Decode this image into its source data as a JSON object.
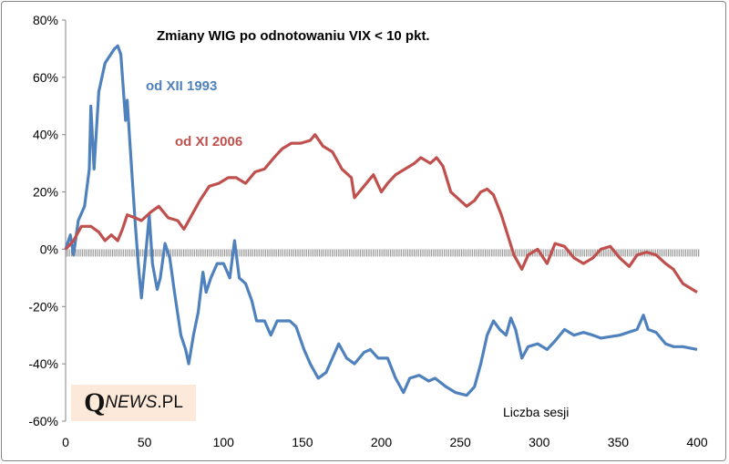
{
  "chart_data": {
    "type": "line",
    "title": "Zmiany WIG po  odnotowaniu VIX < 10 pkt.",
    "xlabel": "Liczba sesji",
    "ylabel": "",
    "xlim": [
      0,
      400
    ],
    "ylim": [
      -60,
      80
    ],
    "xticks": [
      "0",
      "50",
      "100",
      "150",
      "200",
      "250",
      "300",
      "350",
      "400"
    ],
    "yticks": [
      "80%",
      "60%",
      "40%",
      "20%",
      "0%",
      "-20%",
      "-40%",
      "-60%"
    ],
    "grid": false,
    "series": [
      {
        "name": "od XII 1993",
        "color": "#4f81bd",
        "points": [
          [
            0,
            0
          ],
          [
            3,
            5
          ],
          [
            5,
            -2
          ],
          [
            8,
            10
          ],
          [
            12,
            15
          ],
          [
            15,
            28
          ],
          [
            16,
            50
          ],
          [
            18,
            28
          ],
          [
            21,
            55
          ],
          [
            25,
            65
          ],
          [
            31,
            70
          ],
          [
            33,
            71
          ],
          [
            35,
            68
          ],
          [
            38,
            45
          ],
          [
            39,
            52
          ],
          [
            41,
            35
          ],
          [
            44,
            10
          ],
          [
            46,
            -5
          ],
          [
            48,
            -17
          ],
          [
            51,
            0
          ],
          [
            53,
            12
          ],
          [
            55,
            -5
          ],
          [
            58,
            -14
          ],
          [
            60,
            -10
          ],
          [
            63,
            2
          ],
          [
            66,
            -3
          ],
          [
            69,
            -15
          ],
          [
            73,
            -30
          ],
          [
            76,
            -35
          ],
          [
            78,
            -40
          ],
          [
            81,
            -30
          ],
          [
            84,
            -22
          ],
          [
            87,
            -8
          ],
          [
            89,
            -15
          ],
          [
            92,
            -10
          ],
          [
            96,
            -5
          ],
          [
            100,
            -5
          ],
          [
            104,
            -10
          ],
          [
            107,
            3
          ],
          [
            110,
            -10
          ],
          [
            114,
            -12
          ],
          [
            118,
            -18
          ],
          [
            121,
            -25
          ],
          [
            126,
            -25
          ],
          [
            130,
            -30
          ],
          [
            134,
            -25
          ],
          [
            142,
            -25
          ],
          [
            146,
            -27
          ],
          [
            151,
            -35
          ],
          [
            155,
            -40
          ],
          [
            160,
            -45
          ],
          [
            165,
            -43
          ],
          [
            169,
            -38
          ],
          [
            173,
            -33
          ],
          [
            178,
            -38
          ],
          [
            183,
            -40
          ],
          [
            189,
            -36
          ],
          [
            193,
            -35
          ],
          [
            198,
            -38
          ],
          [
            204,
            -38
          ],
          [
            209,
            -45
          ],
          [
            214,
            -50
          ],
          [
            218,
            -45
          ],
          [
            224,
            -44
          ],
          [
            230,
            -46
          ],
          [
            234,
            -45
          ],
          [
            241,
            -48
          ],
          [
            247,
            -50
          ],
          [
            254,
            -51
          ],
          [
            259,
            -48
          ],
          [
            263,
            -40
          ],
          [
            267,
            -30
          ],
          [
            271,
            -25
          ],
          [
            275,
            -28
          ],
          [
            279,
            -30
          ],
          [
            282,
            -24
          ],
          [
            285,
            -28
          ],
          [
            289,
            -38
          ],
          [
            293,
            -34
          ],
          [
            299,
            -33
          ],
          [
            305,
            -35
          ],
          [
            310,
            -32
          ],
          [
            316,
            -28
          ],
          [
            322,
            -30
          ],
          [
            328,
            -29
          ],
          [
            334,
            -30
          ],
          [
            339,
            -31
          ],
          [
            351,
            -30
          ],
          [
            362,
            -28
          ],
          [
            366,
            -23
          ],
          [
            369,
            -28
          ],
          [
            374,
            -29
          ],
          [
            380,
            -33
          ],
          [
            385,
            -34
          ],
          [
            391,
            -34
          ],
          [
            400,
            -35
          ]
        ]
      },
      {
        "name": "od XI 2006",
        "color": "#c0504d",
        "points": [
          [
            0,
            0
          ],
          [
            5,
            3
          ],
          [
            10,
            8
          ],
          [
            16,
            8
          ],
          [
            21,
            6
          ],
          [
            25,
            3
          ],
          [
            29,
            5
          ],
          [
            33,
            3
          ],
          [
            36,
            7
          ],
          [
            39,
            12
          ],
          [
            44,
            11
          ],
          [
            48,
            10
          ],
          [
            54,
            13
          ],
          [
            59,
            15
          ],
          [
            65,
            11
          ],
          [
            71,
            10
          ],
          [
            75,
            7
          ],
          [
            80,
            12
          ],
          [
            85,
            17
          ],
          [
            91,
            22
          ],
          [
            97,
            23
          ],
          [
            103,
            25
          ],
          [
            108,
            25
          ],
          [
            114,
            23
          ],
          [
            120,
            27
          ],
          [
            126,
            28
          ],
          [
            132,
            32
          ],
          [
            137,
            35
          ],
          [
            143,
            37
          ],
          [
            149,
            37
          ],
          [
            155,
            38
          ],
          [
            158,
            40
          ],
          [
            163,
            36
          ],
          [
            169,
            34
          ],
          [
            175,
            28
          ],
          [
            181,
            25
          ],
          [
            183,
            18
          ],
          [
            189,
            22
          ],
          [
            195,
            26
          ],
          [
            200,
            20
          ],
          [
            204,
            23
          ],
          [
            209,
            26
          ],
          [
            215,
            28
          ],
          [
            221,
            30
          ],
          [
            225,
            32
          ],
          [
            231,
            30
          ],
          [
            235,
            32
          ],
          [
            239,
            29
          ],
          [
            244,
            20
          ],
          [
            250,
            17
          ],
          [
            254,
            15
          ],
          [
            259,
            17
          ],
          [
            263,
            20
          ],
          [
            267,
            21
          ],
          [
            271,
            19
          ],
          [
            276,
            12
          ],
          [
            280,
            5
          ],
          [
            284,
            -2
          ],
          [
            289,
            -7
          ],
          [
            293,
            -2
          ],
          [
            299,
            0
          ],
          [
            305,
            -5
          ],
          [
            310,
            2
          ],
          [
            316,
            1
          ],
          [
            322,
            -3
          ],
          [
            328,
            -5
          ],
          [
            334,
            -3
          ],
          [
            339,
            0
          ],
          [
            345,
            1
          ],
          [
            351,
            -3
          ],
          [
            357,
            -6
          ],
          [
            362,
            -2
          ],
          [
            368,
            -1
          ],
          [
            374,
            -2
          ],
          [
            380,
            -5
          ],
          [
            385,
            -7
          ],
          [
            391,
            -12
          ],
          [
            400,
            -15
          ]
        ]
      }
    ]
  },
  "logo": {
    "q": "Q",
    "news": "NEWS",
    "pl": ".PL"
  }
}
